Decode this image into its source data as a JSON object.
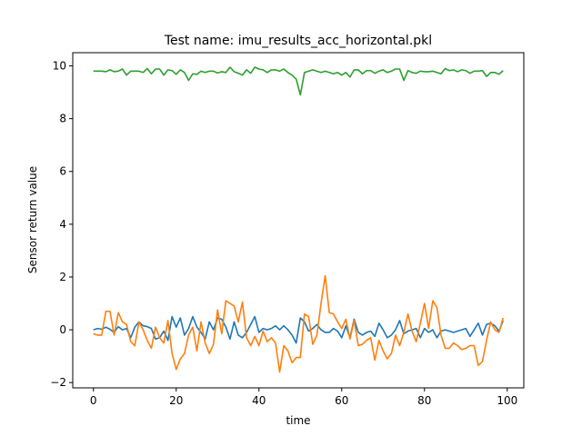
{
  "chart_data": {
    "type": "line",
    "title": "Test name: imu_results_acc_horizontal.pkl",
    "xlabel": "time",
    "ylabel": "Sensor return value",
    "xlim": [
      -5,
      104
    ],
    "ylim": [
      -2.2,
      10.5
    ],
    "xticks": [
      0,
      20,
      40,
      60,
      80,
      100
    ],
    "yticks": [
      -2,
      0,
      2,
      4,
      6,
      8,
      10
    ],
    "grid": false,
    "legend": "none",
    "series": [
      {
        "color": "#1f77b4",
        "x": [
          0,
          1,
          2,
          3,
          4,
          5,
          6,
          7,
          8,
          9,
          10,
          11,
          12,
          13,
          14,
          15,
          16,
          17,
          18,
          19,
          20,
          21,
          22,
          23,
          24,
          25,
          26,
          27,
          28,
          29,
          30,
          31,
          32,
          33,
          34,
          35,
          36,
          37,
          38,
          39,
          40,
          41,
          42,
          43,
          44,
          45,
          46,
          47,
          48,
          49,
          50,
          51,
          52,
          53,
          54,
          55,
          56,
          57,
          58,
          59,
          60,
          61,
          62,
          63,
          64,
          65,
          66,
          67,
          68,
          69,
          70,
          71,
          72,
          73,
          74,
          75,
          76,
          77,
          78,
          79,
          80,
          81,
          82,
          83,
          84,
          85,
          86,
          87,
          88,
          89,
          90,
          91,
          92,
          93,
          94,
          95,
          96,
          97,
          98,
          99
        ],
        "values": [
          0.0,
          0.05,
          0.02,
          0.1,
          0.02,
          -0.1,
          0.12,
          0.0,
          0.05,
          -0.3,
          0.1,
          0.3,
          0.15,
          0.12,
          0.05,
          -0.35,
          -0.3,
          -0.05,
          -0.4,
          0.5,
          0.1,
          0.45,
          -0.2,
          0.05,
          0.5,
          0.1,
          -0.1,
          -0.35,
          0.3,
          0.0,
          0.45,
          0.4,
          0.1,
          -0.35,
          0.3,
          -0.2,
          -0.3,
          -0.1,
          0.2,
          0.5,
          -0.1,
          0.05,
          0.0,
          0.05,
          0.15,
          0.0,
          0.15,
          0.0,
          -0.2,
          -0.5,
          0.45,
          0.3,
          -0.05,
          0.05,
          0.2,
          0.0,
          -0.1,
          -0.1,
          0.05,
          -0.05,
          -0.3,
          0.15,
          -0.3,
          0.4,
          -0.1,
          -0.2,
          -0.1,
          -0.05,
          -0.25,
          0.25,
          0.0,
          -0.3,
          -0.2,
          0.0,
          0.35,
          -0.15,
          -0.05,
          0.0,
          0.05,
          -0.3,
          0.05,
          -0.1,
          0.0,
          -0.3,
          -0.05,
          0.0,
          -0.05,
          -0.1,
          -0.05,
          0.0,
          0.05,
          -0.25,
          0.0,
          0.25,
          -0.2,
          0.2,
          0.25,
          0.15,
          -0.05,
          0.35
        ]
      },
      {
        "color": "#ff7f0e",
        "x": [
          0,
          1,
          2,
          3,
          4,
          5,
          6,
          7,
          8,
          9,
          10,
          11,
          12,
          13,
          14,
          15,
          16,
          17,
          18,
          19,
          20,
          21,
          22,
          23,
          24,
          25,
          26,
          27,
          28,
          29,
          30,
          31,
          32,
          33,
          34,
          35,
          36,
          37,
          38,
          39,
          40,
          41,
          42,
          43,
          44,
          45,
          46,
          47,
          48,
          49,
          50,
          51,
          52,
          53,
          54,
          55,
          56,
          57,
          58,
          59,
          60,
          61,
          62,
          63,
          64,
          65,
          66,
          67,
          68,
          69,
          70,
          71,
          72,
          73,
          74,
          75,
          76,
          77,
          78,
          79,
          80,
          81,
          82,
          83,
          84,
          85,
          86,
          87,
          88,
          89,
          90,
          91,
          92,
          93,
          94,
          95,
          96,
          97,
          98,
          99
        ],
        "values": [
          -0.15,
          -0.2,
          -0.2,
          0.7,
          0.7,
          -0.2,
          0.65,
          0.3,
          0.2,
          -0.45,
          -0.6,
          0.3,
          0.0,
          -0.4,
          -0.7,
          0.1,
          -0.3,
          -0.5,
          0.35,
          -0.9,
          -1.5,
          -1.1,
          -0.9,
          -0.2,
          0.1,
          -0.8,
          0.3,
          -0.5,
          -0.9,
          -0.55,
          0.75,
          -0.15,
          1.1,
          1.0,
          0.9,
          0.3,
          1.05,
          -0.3,
          -0.6,
          -0.25,
          -0.6,
          -0.05,
          -0.45,
          -0.3,
          -0.5,
          -1.6,
          -0.6,
          -0.8,
          -1.25,
          -1.05,
          -1.05,
          0.6,
          0.5,
          -0.55,
          -0.2,
          1.0,
          2.05,
          0.65,
          0.6,
          0.3,
          0.05,
          0.4,
          -0.35,
          0.35,
          -0.6,
          -0.55,
          -0.4,
          -0.3,
          -1.15,
          -0.4,
          -0.8,
          -1.1,
          -0.9,
          -0.2,
          -0.6,
          -0.1,
          0.6,
          -0.05,
          -0.45,
          0.25,
          1.0,
          0.05,
          1.1,
          0.85,
          -0.2,
          -0.7,
          -0.7,
          -0.5,
          -0.6,
          -0.75,
          -0.7,
          -0.6,
          -0.6,
          -1.35,
          -1.2,
          -0.4,
          0.3,
          0.0,
          -0.1,
          0.45
        ]
      },
      {
        "color": "#2ca02c",
        "x": [
          0,
          1,
          2,
          3,
          4,
          5,
          6,
          7,
          8,
          9,
          10,
          11,
          12,
          13,
          14,
          15,
          16,
          17,
          18,
          19,
          20,
          21,
          22,
          23,
          24,
          25,
          26,
          27,
          28,
          29,
          30,
          31,
          32,
          33,
          34,
          35,
          36,
          37,
          38,
          39,
          40,
          41,
          42,
          43,
          44,
          45,
          46,
          47,
          48,
          49,
          50,
          51,
          52,
          53,
          54,
          55,
          56,
          57,
          58,
          59,
          60,
          61,
          62,
          63,
          64,
          65,
          66,
          67,
          68,
          69,
          70,
          71,
          72,
          73,
          74,
          75,
          76,
          77,
          78,
          79,
          80,
          81,
          82,
          83,
          84,
          85,
          86,
          87,
          88,
          89,
          90,
          91,
          92,
          93,
          94,
          95,
          96,
          97,
          98,
          99
        ],
        "values": [
          9.8,
          9.8,
          9.8,
          9.78,
          9.85,
          9.78,
          9.8,
          9.88,
          9.65,
          9.8,
          9.8,
          9.8,
          9.75,
          9.9,
          9.7,
          9.88,
          9.88,
          9.65,
          9.85,
          9.82,
          9.68,
          9.85,
          9.75,
          9.45,
          9.7,
          9.68,
          9.8,
          9.75,
          9.8,
          9.8,
          9.73,
          9.78,
          9.75,
          9.95,
          9.78,
          9.72,
          9.65,
          9.85,
          9.72,
          9.95,
          9.88,
          9.85,
          9.75,
          9.85,
          9.85,
          9.8,
          9.88,
          9.75,
          9.65,
          9.5,
          8.9,
          9.75,
          9.8,
          9.85,
          9.8,
          9.75,
          9.8,
          9.75,
          9.7,
          9.75,
          9.65,
          9.75,
          9.58,
          9.85,
          9.85,
          9.7,
          9.82,
          9.82,
          9.72,
          9.8,
          9.85,
          9.75,
          9.8,
          9.88,
          9.88,
          9.45,
          9.82,
          9.75,
          9.72,
          9.8,
          9.78,
          9.78,
          9.8,
          9.75,
          9.7,
          9.9,
          9.82,
          9.85,
          9.78,
          9.85,
          9.82,
          9.72,
          9.8,
          9.8,
          9.82,
          9.6,
          9.75,
          9.75,
          9.68,
          9.82
        ]
      }
    ]
  }
}
